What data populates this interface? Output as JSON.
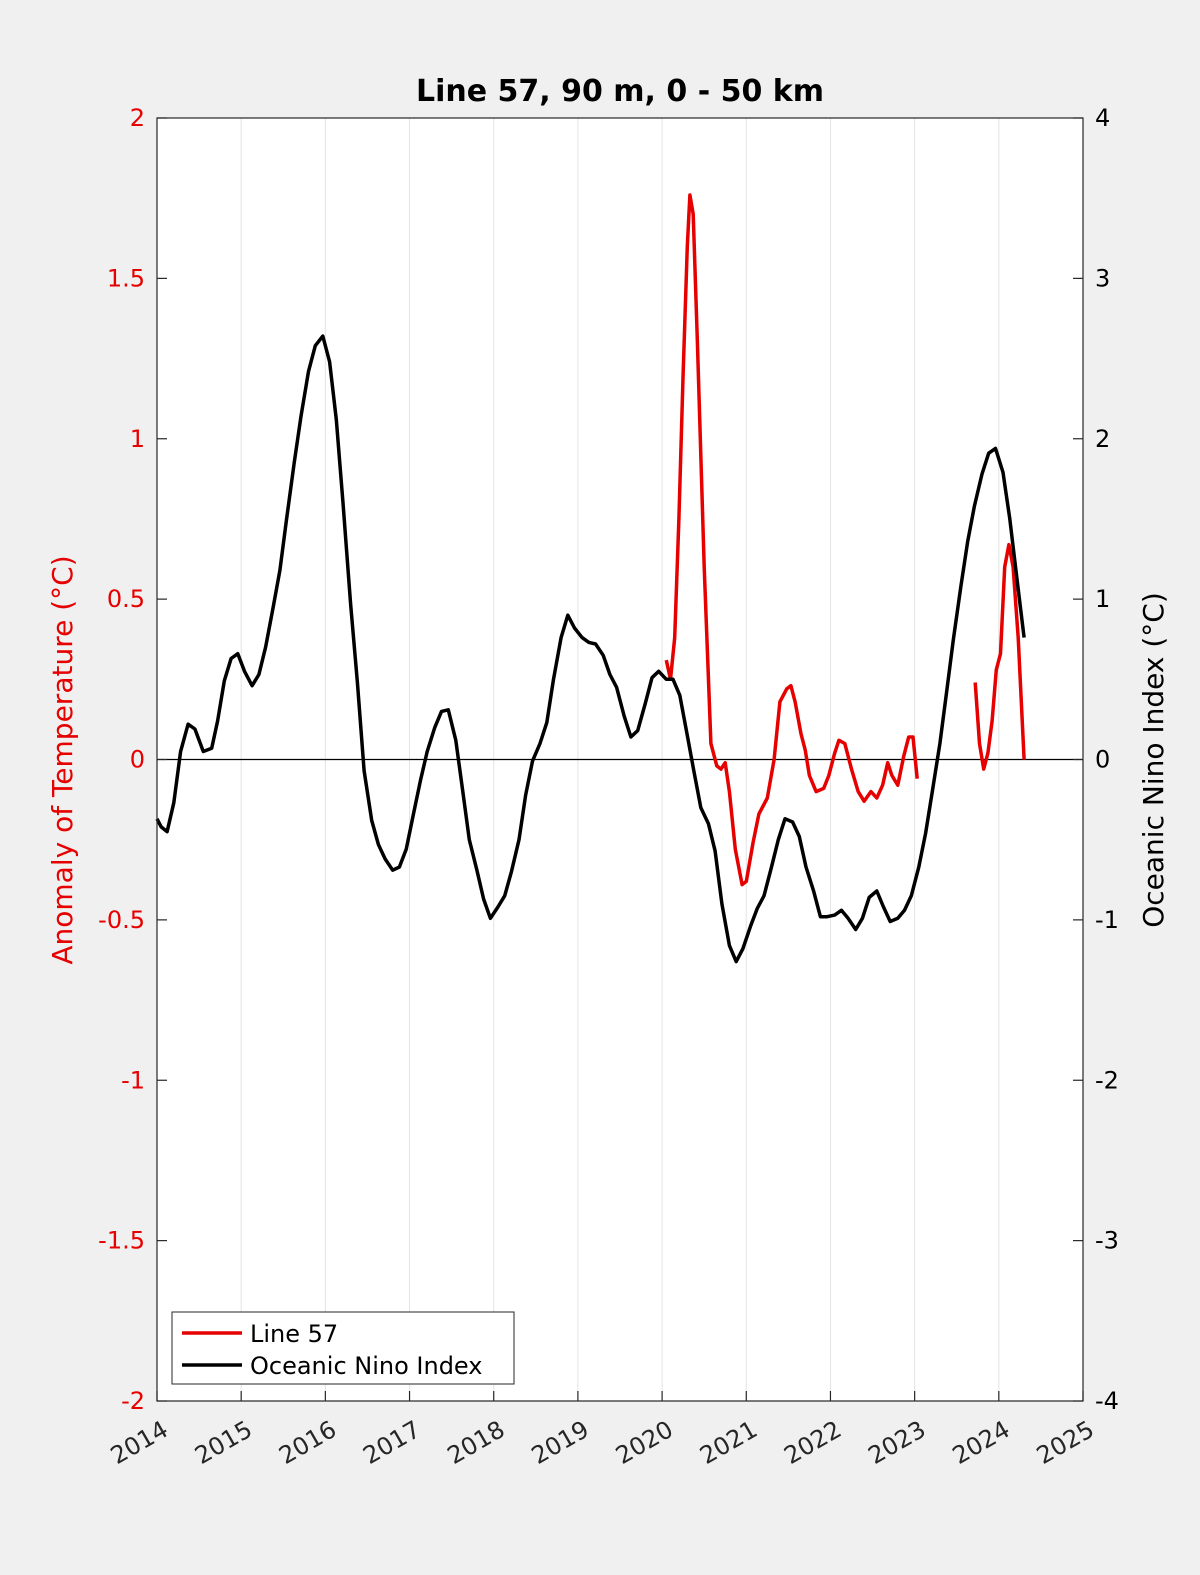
{
  "chart_data": {
    "type": "line",
    "title": "Line 57, 90 m, 0 - 50 km",
    "xlim": [
      2014,
      2025
    ],
    "x_ticks": [
      "2014",
      "2015",
      "2016",
      "2017",
      "2018",
      "2019",
      "2020",
      "2021",
      "2022",
      "2023",
      "2024",
      "2025"
    ],
    "left_axis": {
      "label": "Anomaly of Temperature (°C)",
      "color": "#e60000",
      "ylim": [
        -2,
        2
      ],
      "ticks": [
        "-2",
        "-1.5",
        "-1",
        "-0.5",
        "0",
        "0.5",
        "1",
        "1.5",
        "2"
      ]
    },
    "right_axis": {
      "label": "Oceanic Nino Index (°C)",
      "color": "#000000",
      "ylim": [
        -4,
        4
      ],
      "ticks": [
        "-4",
        "-3",
        "-2",
        "-1",
        "0",
        "1",
        "2",
        "3",
        "4"
      ]
    },
    "grid": "vertical-only",
    "zero_line": true,
    "legend": {
      "placement": "bottom-left",
      "entries": [
        {
          "label": "Line 57",
          "color": "#e60000"
        },
        {
          "label": "Oceanic Nino Index",
          "color": "#000000"
        }
      ]
    },
    "series": [
      {
        "name": "Line 57",
        "axis": "left",
        "color": "#e60000",
        "segments": [
          [
            [
              2020.05,
              0.31
            ],
            [
              2020.1,
              0.25
            ],
            [
              2020.15,
              0.38
            ],
            [
              2020.2,
              0.75
            ],
            [
              2020.25,
              1.2
            ],
            [
              2020.3,
              1.6
            ],
            [
              2020.33,
              1.76
            ],
            [
              2020.37,
              1.7
            ],
            [
              2020.42,
              1.3
            ],
            [
              2020.5,
              0.6
            ],
            [
              2020.58,
              0.05
            ],
            [
              2020.65,
              -0.02
            ],
            [
              2020.7,
              -0.03
            ],
            [
              2020.75,
              -0.01
            ],
            [
              2020.8,
              -0.1
            ],
            [
              2020.87,
              -0.28
            ],
            [
              2020.95,
              -0.39
            ],
            [
              2021.0,
              -0.38
            ],
            [
              2021.08,
              -0.26
            ],
            [
              2021.15,
              -0.17
            ],
            [
              2021.25,
              -0.12
            ],
            [
              2021.33,
              0.0
            ],
            [
              2021.4,
              0.18
            ],
            [
              2021.48,
              0.22
            ],
            [
              2021.53,
              0.23
            ],
            [
              2021.58,
              0.18
            ],
            [
              2021.65,
              0.08
            ],
            [
              2021.7,
              0.03
            ],
            [
              2021.75,
              -0.05
            ],
            [
              2021.83,
              -0.1
            ],
            [
              2021.92,
              -0.09
            ],
            [
              2021.98,
              -0.05
            ],
            [
              2022.05,
              0.02
            ],
            [
              2022.1,
              0.06
            ],
            [
              2022.17,
              0.05
            ],
            [
              2022.25,
              -0.03
            ],
            [
              2022.33,
              -0.1
            ],
            [
              2022.4,
              -0.13
            ],
            [
              2022.48,
              -0.1
            ],
            [
              2022.55,
              -0.12
            ],
            [
              2022.62,
              -0.08
            ],
            [
              2022.68,
              -0.01
            ],
            [
              2022.73,
              -0.05
            ],
            [
              2022.8,
              -0.08
            ],
            [
              2022.87,
              0.01
            ],
            [
              2022.93,
              0.07
            ],
            [
              2022.98,
              0.07
            ],
            [
              2023.03,
              -0.06
            ]
          ],
          [
            [
              2023.72,
              0.24
            ],
            [
              2023.77,
              0.05
            ],
            [
              2023.82,
              -0.03
            ],
            [
              2023.87,
              0.02
            ],
            [
              2023.92,
              0.12
            ],
            [
              2023.97,
              0.28
            ],
            [
              2024.02,
              0.33
            ],
            [
              2024.07,
              0.6
            ],
            [
              2024.12,
              0.67
            ],
            [
              2024.17,
              0.6
            ],
            [
              2024.23,
              0.38
            ],
            [
              2024.3,
              0.0
            ]
          ]
        ]
      },
      {
        "name": "Oceanic Nino Index",
        "axis": "right",
        "color": "#000000",
        "points": [
          [
            2014.0,
            -0.37
          ],
          [
            2014.05,
            -0.42
          ],
          [
            2014.12,
            -0.45
          ],
          [
            2014.2,
            -0.27
          ],
          [
            2014.28,
            0.05
          ],
          [
            2014.37,
            0.22
          ],
          [
            2014.45,
            0.19
          ],
          [
            2014.55,
            0.05
          ],
          [
            2014.65,
            0.07
          ],
          [
            2014.72,
            0.24
          ],
          [
            2014.8,
            0.49
          ],
          [
            2014.88,
            0.63
          ],
          [
            2014.96,
            0.66
          ],
          [
            2015.04,
            0.55
          ],
          [
            2015.13,
            0.46
          ],
          [
            2015.21,
            0.53
          ],
          [
            2015.29,
            0.7
          ],
          [
            2015.38,
            0.95
          ],
          [
            2015.46,
            1.18
          ],
          [
            2015.54,
            1.5
          ],
          [
            2015.63,
            1.85
          ],
          [
            2015.71,
            2.14
          ],
          [
            2015.8,
            2.42
          ],
          [
            2015.88,
            2.58
          ],
          [
            2015.97,
            2.64
          ],
          [
            2016.05,
            2.48
          ],
          [
            2016.13,
            2.12
          ],
          [
            2016.21,
            1.6
          ],
          [
            2016.3,
            0.97
          ],
          [
            2016.38,
            0.48
          ],
          [
            2016.46,
            -0.07
          ],
          [
            2016.55,
            -0.38
          ],
          [
            2016.63,
            -0.53
          ],
          [
            2016.71,
            -0.62
          ],
          [
            2016.8,
            -0.69
          ],
          [
            2016.88,
            -0.67
          ],
          [
            2016.96,
            -0.56
          ],
          [
            2017.05,
            -0.33
          ],
          [
            2017.13,
            -0.13
          ],
          [
            2017.21,
            0.05
          ],
          [
            2017.3,
            0.2
          ],
          [
            2017.38,
            0.3
          ],
          [
            2017.46,
            0.31
          ],
          [
            2017.55,
            0.12
          ],
          [
            2017.63,
            -0.19
          ],
          [
            2017.71,
            -0.5
          ],
          [
            2017.8,
            -0.69
          ],
          [
            2017.88,
            -0.87
          ],
          [
            2017.96,
            -0.99
          ],
          [
            2018.05,
            -0.92
          ],
          [
            2018.13,
            -0.85
          ],
          [
            2018.21,
            -0.7
          ],
          [
            2018.3,
            -0.5
          ],
          [
            2018.38,
            -0.22
          ],
          [
            2018.46,
            -0.01
          ],
          [
            2018.55,
            0.1
          ],
          [
            2018.63,
            0.23
          ],
          [
            2018.71,
            0.5
          ],
          [
            2018.8,
            0.76
          ],
          [
            2018.88,
            0.9
          ],
          [
            2018.96,
            0.82
          ],
          [
            2019.05,
            0.76
          ],
          [
            2019.13,
            0.73
          ],
          [
            2019.21,
            0.72
          ],
          [
            2019.3,
            0.65
          ],
          [
            2019.38,
            0.53
          ],
          [
            2019.46,
            0.45
          ],
          [
            2019.55,
            0.27
          ],
          [
            2019.63,
            0.14
          ],
          [
            2019.71,
            0.18
          ],
          [
            2019.8,
            0.35
          ],
          [
            2019.88,
            0.51
          ],
          [
            2019.96,
            0.55
          ],
          [
            2020.05,
            0.5
          ],
          [
            2020.13,
            0.5
          ],
          [
            2020.21,
            0.4
          ],
          [
            2020.3,
            0.15
          ],
          [
            2020.38,
            -0.08
          ],
          [
            2020.46,
            -0.3
          ],
          [
            2020.55,
            -0.4
          ],
          [
            2020.63,
            -0.57
          ],
          [
            2020.71,
            -0.9
          ],
          [
            2020.8,
            -1.16
          ],
          [
            2020.88,
            -1.26
          ],
          [
            2020.96,
            -1.18
          ],
          [
            2021.05,
            -1.04
          ],
          [
            2021.13,
            -0.93
          ],
          [
            2021.21,
            -0.85
          ],
          [
            2021.3,
            -0.67
          ],
          [
            2021.38,
            -0.5
          ],
          [
            2021.46,
            -0.37
          ],
          [
            2021.55,
            -0.39
          ],
          [
            2021.63,
            -0.48
          ],
          [
            2021.71,
            -0.67
          ],
          [
            2021.8,
            -0.82
          ],
          [
            2021.88,
            -0.98
          ],
          [
            2021.96,
            -0.98
          ],
          [
            2022.05,
            -0.97
          ],
          [
            2022.13,
            -0.94
          ],
          [
            2022.21,
            -0.99
          ],
          [
            2022.3,
            -1.06
          ],
          [
            2022.38,
            -0.99
          ],
          [
            2022.46,
            -0.86
          ],
          [
            2022.55,
            -0.82
          ],
          [
            2022.63,
            -0.92
          ],
          [
            2022.71,
            -1.01
          ],
          [
            2022.8,
            -0.99
          ],
          [
            2022.88,
            -0.94
          ],
          [
            2022.96,
            -0.85
          ],
          [
            2023.05,
            -0.67
          ],
          [
            2023.13,
            -0.46
          ],
          [
            2023.21,
            -0.2
          ],
          [
            2023.3,
            0.1
          ],
          [
            2023.38,
            0.42
          ],
          [
            2023.46,
            0.75
          ],
          [
            2023.55,
            1.08
          ],
          [
            2023.63,
            1.36
          ],
          [
            2023.71,
            1.58
          ],
          [
            2023.8,
            1.78
          ],
          [
            2023.88,
            1.91
          ],
          [
            2023.96,
            1.94
          ],
          [
            2024.05,
            1.79
          ],
          [
            2024.13,
            1.5
          ],
          [
            2024.21,
            1.15
          ],
          [
            2024.3,
            0.76
          ]
        ]
      }
    ]
  }
}
